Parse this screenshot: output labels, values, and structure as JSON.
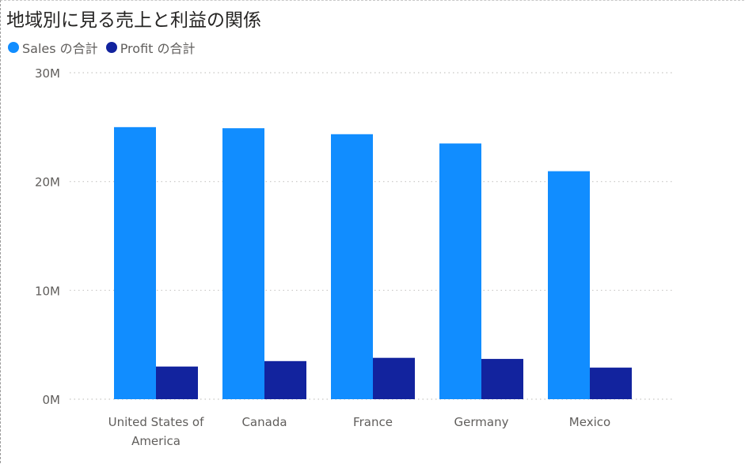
{
  "chart_data": {
    "type": "bar",
    "title": "地域別に見る売上と利益の関係",
    "categories": [
      "United States of America",
      "Canada",
      "France",
      "Germany",
      "Mexico"
    ],
    "category_label_lines": [
      [
        "United States of",
        "America"
      ],
      [
        "Canada"
      ],
      [
        "France"
      ],
      [
        "Germany"
      ],
      [
        "Mexico"
      ]
    ],
    "series": [
      {
        "name": "Sales の合計",
        "color": "#118dff",
        "values": [
          25000000,
          24900000,
          24350000,
          23500000,
          20950000
        ]
      },
      {
        "name": "Profit の合計",
        "color": "#12239e",
        "values": [
          3000000,
          3500000,
          3800000,
          3700000,
          2900000
        ]
      }
    ],
    "ylim": [
      0,
      30000000
    ],
    "yticks": [
      {
        "value": 0,
        "label": "0M"
      },
      {
        "value": 10000000,
        "label": "10M"
      },
      {
        "value": 20000000,
        "label": "20M"
      },
      {
        "value": 30000000,
        "label": "30M"
      }
    ],
    "grid": true,
    "legend_position": "top-left"
  }
}
